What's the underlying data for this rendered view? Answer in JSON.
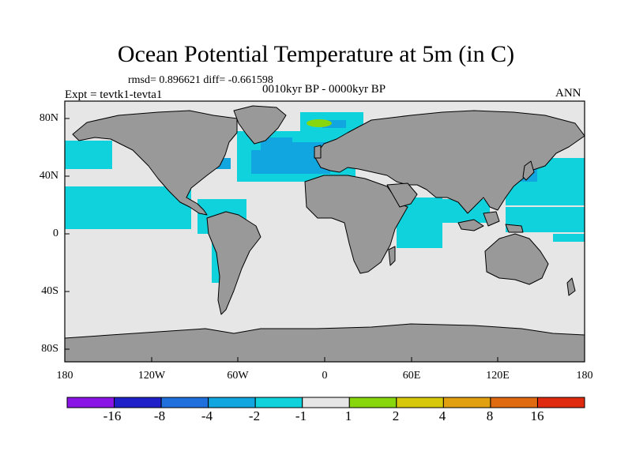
{
  "title": "Ocean Potential Temperature at 5m (in C)",
  "subtitle_stats": "rmsd= 0.896621 diff= -0.661598",
  "period": "0010kyr BP - 0000kyr BP",
  "left_label": "Expt = tevtk1-tevta1",
  "right_label": "ANN",
  "map": {
    "projection": "cylindrical equidistant",
    "lon_range": [
      -180,
      180
    ],
    "lat_range": [
      -90,
      90
    ],
    "land_color": "#999999",
    "ocean_color": "#e6e6e6",
    "y_ticks": [
      "80N",
      "40N",
      "0",
      "40S",
      "80S"
    ],
    "x_ticks": [
      "180",
      "120W",
      "60W",
      "0",
      "60E",
      "120E",
      "180"
    ]
  },
  "colorbar": {
    "labels": [
      "-16",
      "-8",
      "-4",
      "-2",
      "-1",
      "1",
      "2",
      "4",
      "8",
      "16"
    ],
    "colors": [
      "#8a14e6",
      "#2020c8",
      "#1f6fdc",
      "#11a6e0",
      "#10d2dc",
      "#e6e6e6",
      "#88d60c",
      "#d8c80c",
      "#e0a010",
      "#e06a10",
      "#e02a10"
    ]
  }
}
